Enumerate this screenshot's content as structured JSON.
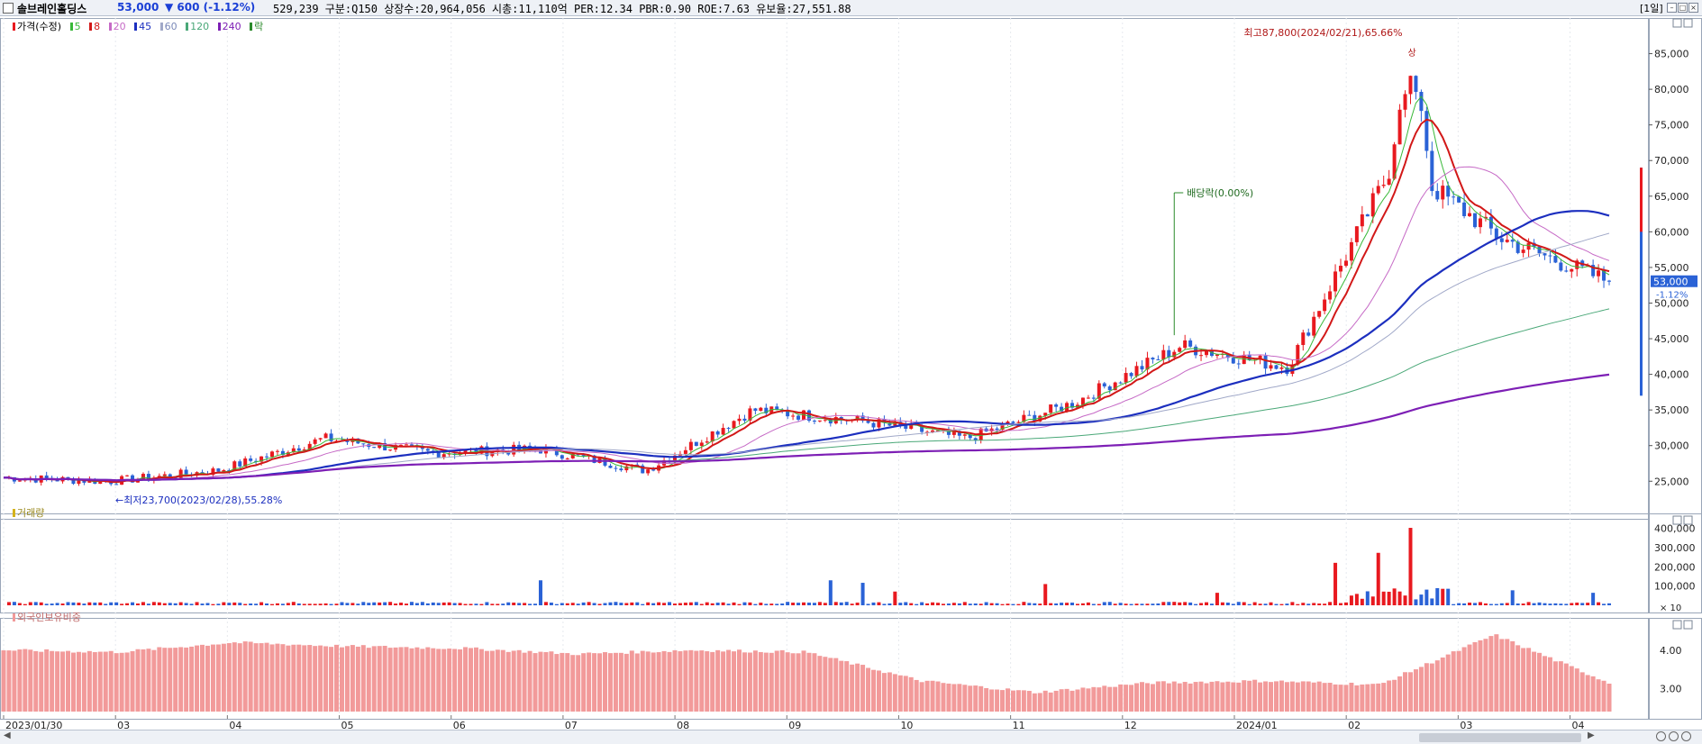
{
  "header": {
    "name": "솔브레인홀딩스",
    "price": "53,000",
    "change": "▼ 600 (-1.12%)",
    "info": "529,239  구분:Q150 상장수:20,964,056 시총:11,110억 PER:12.34 PBR:0.90 ROE:7.63 유보율:27,551.88",
    "period": "[1일]"
  },
  "legend": {
    "price": "가격(수정)",
    "ma5": "5",
    "ma8": "8",
    "ma20": "20",
    "ma45": "45",
    "ma60": "60",
    "ma120": "120",
    "ma240": "240",
    "ex": "락"
  },
  "panels": {
    "volume_label": "거래량",
    "foreign_label": "외국인보유비중"
  },
  "colors": {
    "up": "#e8191f",
    "down": "#2a62d6",
    "ma5": "#38b838",
    "ma8": "#d21818",
    "ma20": "#c66ac6",
    "ma45": "#1c2fbf",
    "ma60": "#a0a8c8",
    "ma120": "#4aa878",
    "ma240": "#7d1fb5",
    "foreign": "#f29a9a"
  },
  "chart_data": [
    {
      "type": "candlestick",
      "title": "",
      "xlabel": "",
      "ylabel": "",
      "x_ticks": [
        "2023/01/30",
        "03",
        "04",
        "05",
        "06",
        "07",
        "08",
        "09",
        "10",
        "11",
        "12",
        "2024/01",
        "02",
        "03",
        "04"
      ],
      "y_ticks": [
        "25,000",
        "30,000",
        "35,000",
        "40,000",
        "45,000",
        "50,000",
        "55,000",
        "60,000",
        "65,000",
        "70,000",
        "75,000",
        "80,000",
        "85,000"
      ],
      "ylim": [
        22000,
        90000
      ],
      "current": {
        "price": 53000,
        "label": "53,000",
        "change_label": "-1.12%"
      },
      "annotations": {
        "high": "최고87,800(2024/02/21),65.66%",
        "low": "←최저23,700(2023/02/28),55.28%",
        "dividend": "배당락(0.00%)",
        "high_marker": "상"
      },
      "closes_monthly": [
        {
          "month": "2023/01",
          "close": 25500
        },
        {
          "month": "2023/02",
          "close": 25000
        },
        {
          "month": "2023/03",
          "close": 26500
        },
        {
          "month": "2023/04",
          "close": 31000
        },
        {
          "month": "2023/05",
          "close": 29000
        },
        {
          "month": "2023/06",
          "close": 29500
        },
        {
          "month": "2023/07",
          "close": 26500
        },
        {
          "month": "2023/08",
          "close": 35000
        },
        {
          "month": "2023/09",
          "close": 33500
        },
        {
          "month": "2023/10",
          "close": 31000
        },
        {
          "month": "2023/11",
          "close": 36000
        },
        {
          "month": "2023/12",
          "close": 44000
        },
        {
          "month": "2024/01",
          "close": 41000
        },
        {
          "month": "2024/02",
          "close": 70000
        },
        {
          "month": "2024/03",
          "close": 59000
        },
        {
          "month": "2024/04",
          "close": 53000
        }
      ]
    },
    {
      "type": "bar",
      "title": "거래량",
      "y_ticks": [
        "100,000",
        "200,000",
        "300,000",
        "400,000"
      ],
      "unit_label": "× 10",
      "ylim": [
        0,
        450000
      ],
      "notable_values": [
        {
          "date": "2023/08",
          "value": 140000
        },
        {
          "date": "2024/02/08",
          "value": 230000
        },
        {
          "date": "2024/02/14",
          "value": 280000
        },
        {
          "date": "2024/02/21",
          "value": 430000
        }
      ]
    },
    {
      "type": "bar",
      "title": "외국인보유비중",
      "y_ticks": [
        "3.00",
        "4.00"
      ],
      "ylim": [
        2.4,
        4.7
      ],
      "values_monthly": [
        {
          "month": "2023/01",
          "value": 4.0
        },
        {
          "month": "2023/03",
          "value": 3.95
        },
        {
          "month": "2023/04",
          "value": 4.2
        },
        {
          "month": "2023/05",
          "value": 4.1
        },
        {
          "month": "2023/06",
          "value": 4.05
        },
        {
          "month": "2023/07",
          "value": 3.9
        },
        {
          "month": "2023/08",
          "value": 4.0
        },
        {
          "month": "2023/09",
          "value": 3.95
        },
        {
          "month": "2023/10",
          "value": 3.2
        },
        {
          "month": "2023/11",
          "value": 2.9
        },
        {
          "month": "2023/12",
          "value": 3.15
        },
        {
          "month": "2024/01",
          "value": 3.2
        },
        {
          "month": "2024/02",
          "value": 3.1
        },
        {
          "month": "2024/03",
          "value": 4.4
        },
        {
          "month": "2024/04",
          "value": 3.15
        }
      ]
    }
  ]
}
